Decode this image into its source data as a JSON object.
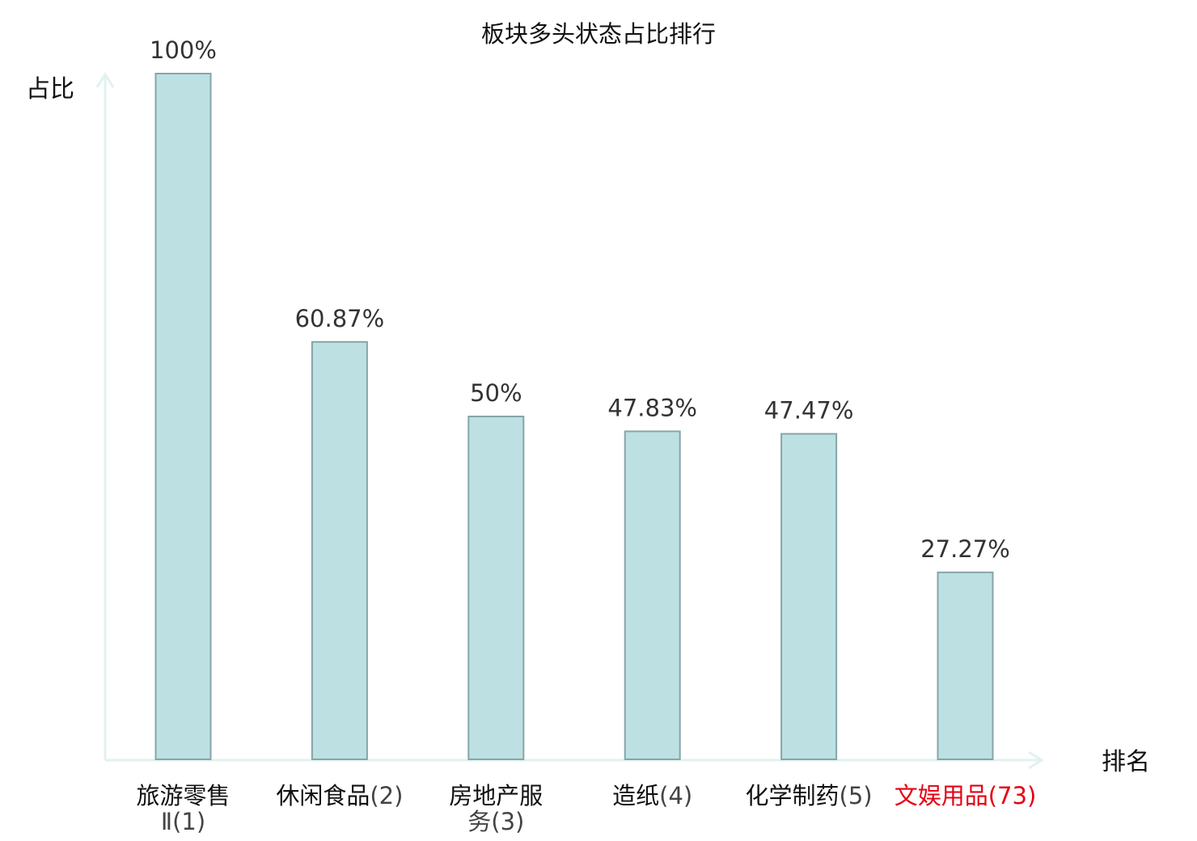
{
  "chart_data": {
    "type": "bar",
    "title": "板块多头状态占比排行",
    "ylabel": "占比",
    "xlabel": "排名",
    "ylim": [
      0,
      100
    ],
    "grid": false,
    "categories": [
      {
        "name_lines": [
          "旅游零售"
        ],
        "tail": "Ⅱ(1)"
      },
      {
        "name_lines": [
          "休闲食品"
        ],
        "tail": "(2)"
      },
      {
        "name_lines": [
          "房地产服"
        ],
        "tail": "务(3)"
      },
      {
        "name_lines": [
          "造纸"
        ],
        "tail": "(4)"
      },
      {
        "name_lines": [
          "化学制药"
        ],
        "tail": "(5)"
      },
      {
        "name_lines": [
          "文娱用品"
        ],
        "tail": "(73)",
        "highlight": true
      }
    ],
    "category_text": [
      "旅游零售Ⅱ(1)",
      "休闲食品(2)",
      "房地产服务(3)",
      "造纸(4)",
      "化学制药(5)",
      "文娱用品(73)"
    ],
    "values": [
      100,
      60.87,
      50,
      47.83,
      47.47,
      27.27
    ],
    "value_labels": [
      "100%",
      "60.87%",
      "50%",
      "47.83%",
      "47.47%",
      "27.27%"
    ],
    "colors": {
      "bar_fill": "#bde0e3",
      "bar_stroke": "#86a5a8",
      "axis": "#e0f2ef",
      "highlight": "#e60012"
    }
  }
}
